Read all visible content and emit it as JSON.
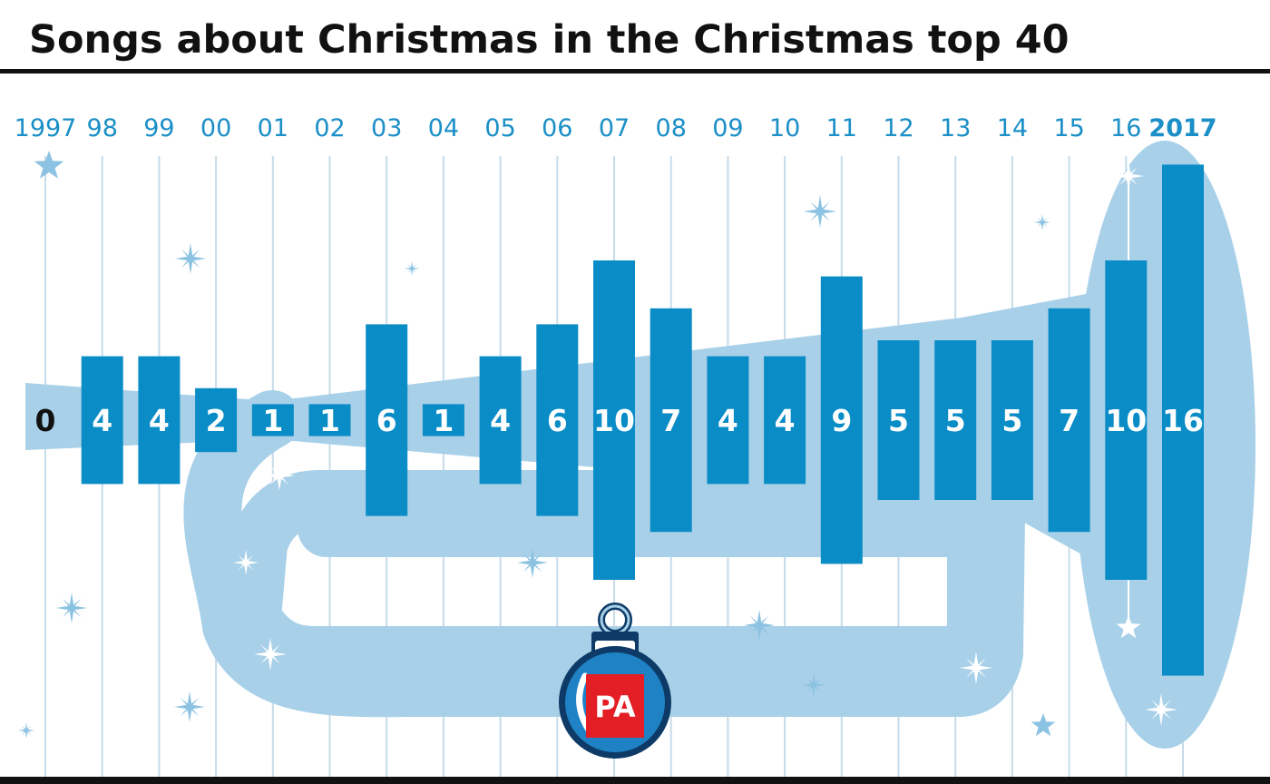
{
  "chart_data": {
    "type": "bar",
    "title": "Songs about Christmas in the Christmas top 40",
    "categories": [
      "1997",
      "98",
      "99",
      "00",
      "01",
      "02",
      "03",
      "04",
      "05",
      "06",
      "07",
      "08",
      "09",
      "10",
      "11",
      "12",
      "13",
      "14",
      "15",
      "16",
      "2017"
    ],
    "values": [
      0,
      4,
      4,
      2,
      1,
      1,
      6,
      1,
      4,
      6,
      10,
      7,
      4,
      4,
      9,
      5,
      5,
      5,
      7,
      10,
      16
    ],
    "highlight_category": "2017",
    "ylim": [
      0,
      16
    ],
    "grid": true,
    "xlabel": "",
    "ylabel": ""
  },
  "logo": {
    "text": "PA"
  },
  "colors": {
    "bar": "#0a8cc6",
    "trumpet": "#a8d0e8",
    "highlight": "#a8d0e8",
    "grid": "#c7dbe8",
    "year_label": "#1b8fc7",
    "title": "#111111",
    "star": "#8dc3e2",
    "pa_red": "#e31e24"
  }
}
